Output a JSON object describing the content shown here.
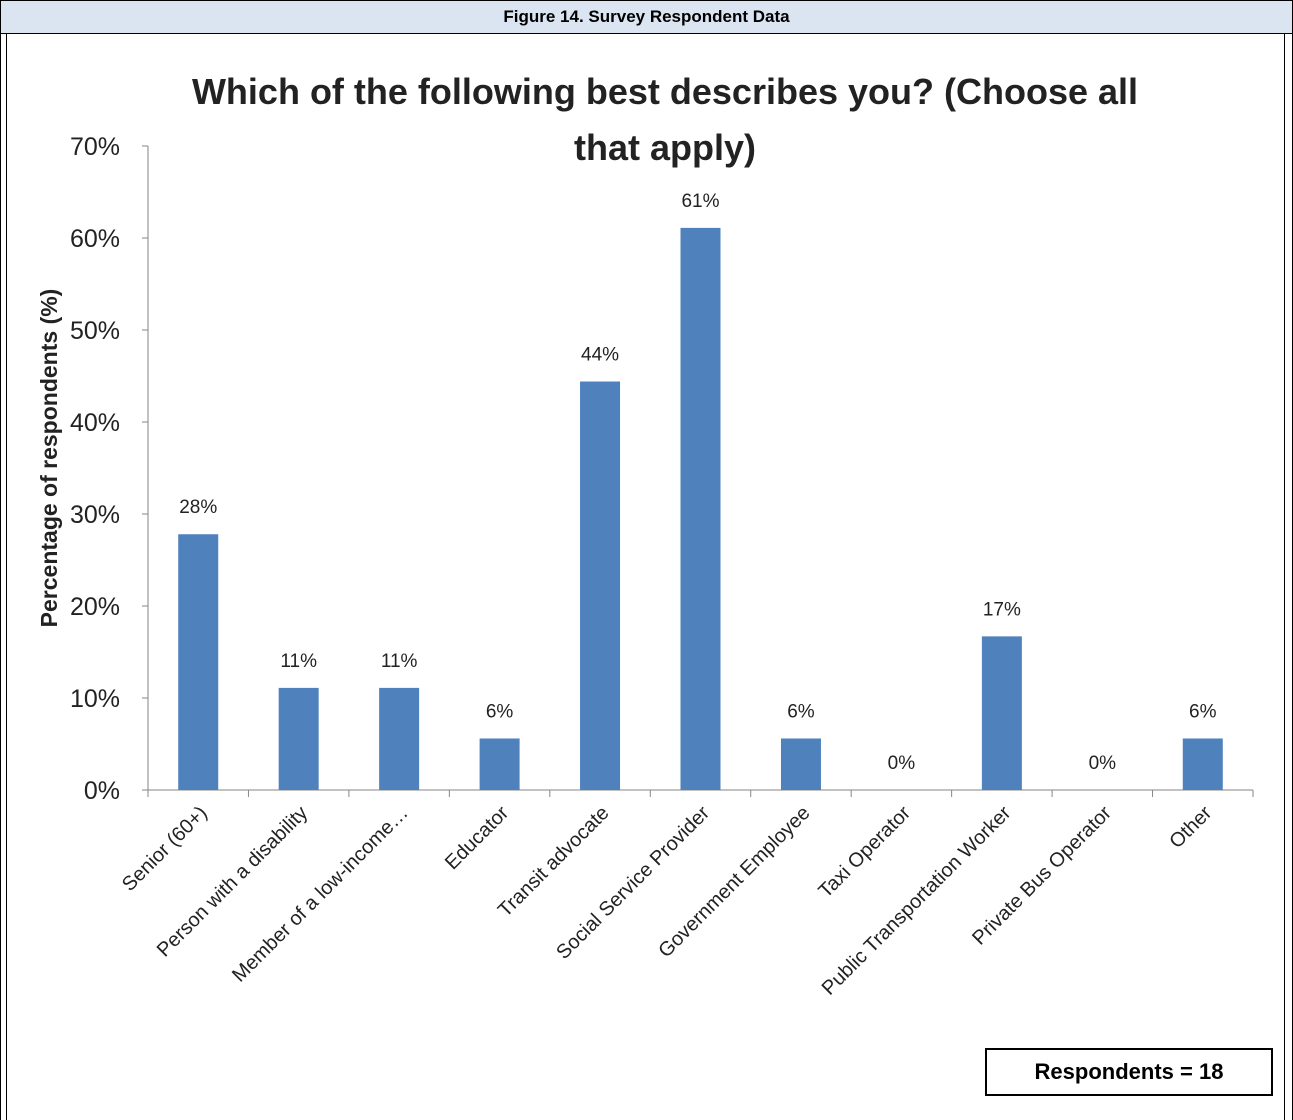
{
  "figure_caption": "Figure 14. Survey Respondent Data",
  "respondents_note": "Respondents = 18",
  "colors": {
    "bar": "#4f81bd",
    "header_bg": "#dbe5f1"
  },
  "chart_data": {
    "type": "bar",
    "title": "Which of the following best describes you? (Choose all that apply)",
    "xlabel": "",
    "ylabel": "Percentage of respondents (%)",
    "ylim": [
      0,
      70
    ],
    "yticks": [
      "0%",
      "10%",
      "20%",
      "30%",
      "40%",
      "50%",
      "60%",
      "70%"
    ],
    "categories": [
      "Senior (60+)",
      "Person with a disability",
      "Member of a low-income…",
      "Educator",
      "Transit advocate",
      "Social Service Provider",
      "Government Employee",
      "Taxi Operator",
      "Public Transportation Worker",
      "Private Bus Operator",
      "Other"
    ],
    "values": [
      27.8,
      11.1,
      11.1,
      5.6,
      44.4,
      61.1,
      5.6,
      0,
      16.7,
      0,
      5.6
    ],
    "data_labels": [
      "28%",
      "11%",
      "11%",
      "6%",
      "44%",
      "61%",
      "6%",
      "0%",
      "17%",
      "0%",
      "6%"
    ],
    "grid": false,
    "legend": "none"
  }
}
